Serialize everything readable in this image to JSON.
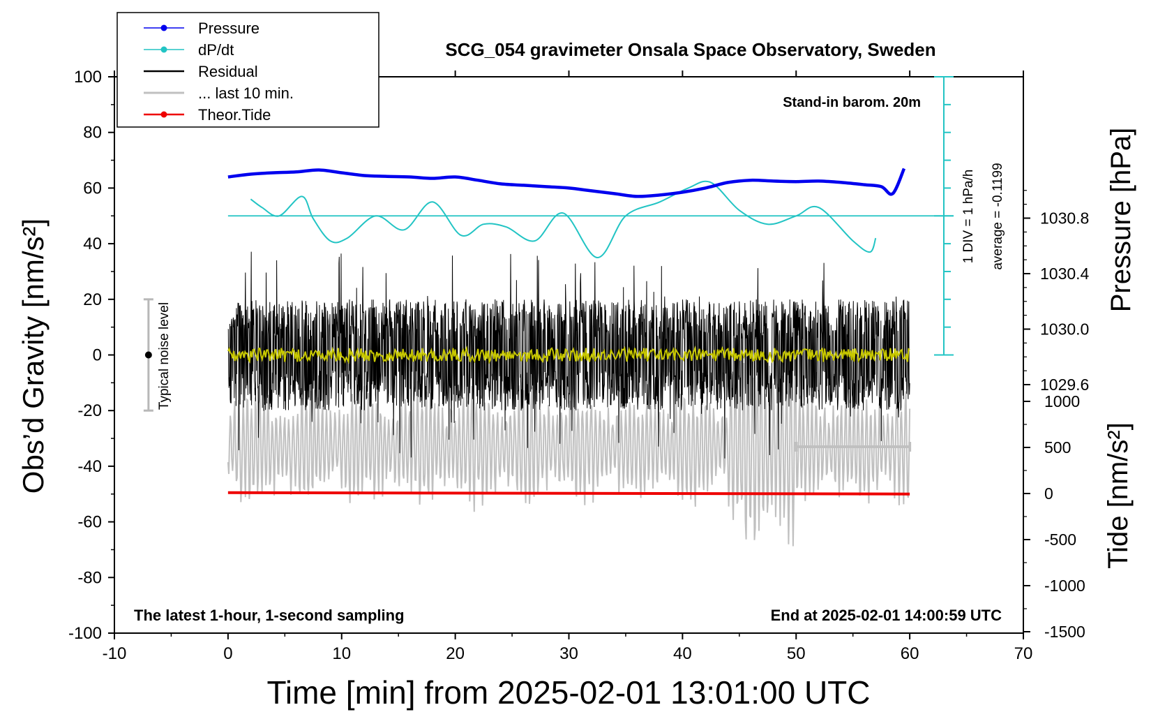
{
  "chart_data": {
    "type": "line",
    "title": "SCG_054 gravimeter Onsala Space Observatory, Sweden",
    "xlabel": "Time [min] from 2025-02-01 13:01:00 UTC",
    "ylabel_left": "Obs’d Gravity [nm/s²]",
    "ylabel_right_top": "Pressure [hPa]",
    "ylabel_right_bottom": "Tide [nm/s²]",
    "xlim": [
      -10,
      70
    ],
    "ylim_left": [
      -100,
      100
    ],
    "x_ticks": [
      "-10",
      "0",
      "10",
      "20",
      "30",
      "40",
      "50",
      "60",
      "70"
    ],
    "y_ticks_left": [
      "-100",
      "-80",
      "-60",
      "-40",
      "-20",
      "0",
      "20",
      "40",
      "60",
      "80",
      "100"
    ],
    "pressure_ticks": [
      {
        "label": "1029.6",
        "value": 1029.6
      },
      {
        "label": "1030.0",
        "value": 1030.0
      },
      {
        "label": "1030.4",
        "value": 1030.4
      },
      {
        "label": "1030.8",
        "value": 1030.8
      }
    ],
    "tide_ticks": [
      {
        "label": "-1500",
        "value": -1500
      },
      {
        "label": "-1000",
        "value": -1000
      },
      {
        "label": "-500",
        "value": -500
      },
      {
        "label": "0",
        "value": 0
      },
      {
        "label": "500",
        "value": 500
      },
      {
        "label": "1000",
        "value": 1000
      }
    ],
    "legend": [
      {
        "name": "Pressure",
        "color": "#0000ee",
        "marker": true
      },
      {
        "name": "dP/dt",
        "color": "#22c4c4",
        "marker": true
      },
      {
        "name": "Residual",
        "color": "#000000",
        "marker": false
      },
      {
        "name": "... last 10 min.",
        "color": "#c0c0c0",
        "marker": false
      },
      {
        "name": "Theor.Tide",
        "color": "#ee0000",
        "marker": true
      }
    ],
    "annotations": {
      "barometer": "Stand-in barom. 20m",
      "div_label": "1 DIV = 1 hPa/h",
      "average_label": "average = -0.1199",
      "noise_label": "Typical noise level",
      "bottom_left": "The latest 1-hour, 1-second sampling",
      "bottom_right": "End at 2025-02-01 14:00:59 UTC"
    },
    "pressure_series": {
      "x": [
        0,
        2,
        4,
        6,
        8,
        10,
        12,
        14,
        16,
        18,
        20,
        22,
        24,
        26,
        28,
        30,
        32,
        34,
        36,
        38,
        40,
        42,
        44,
        46,
        48,
        50,
        52,
        54,
        56,
        57.5,
        58.5,
        59.5
      ],
      "y": [
        64,
        65,
        65.5,
        65.8,
        66.5,
        65.5,
        64.5,
        64.2,
        64,
        63.5,
        64,
        62.8,
        61.5,
        61,
        60.5,
        60,
        59,
        58,
        57,
        57.5,
        58.5,
        60,
        62,
        62.8,
        62.5,
        62.3,
        62.5,
        62,
        61.2,
        60.5,
        58,
        67
      ]
    },
    "dpdt_series": {
      "baseline": 50,
      "x": [
        2,
        3,
        4.5,
        6.5,
        7.5,
        9,
        10.5,
        13,
        15.5,
        18,
        20.5,
        22.5,
        24.5,
        27,
        29.5,
        32.5,
        35,
        38,
        40.5,
        42.5,
        45,
        47.5,
        50,
        52,
        55,
        56.5,
        57
      ],
      "y": [
        56,
        53,
        50,
        57,
        49,
        41,
        42,
        50,
        45,
        55,
        43,
        47,
        46,
        41,
        51,
        35,
        50,
        55,
        60,
        62,
        52,
        47,
        50,
        53,
        41,
        37,
        42
      ]
    },
    "theor_tide": {
      "x": [
        0,
        60
      ],
      "y": [
        -49.5,
        -50
      ]
    },
    "residual": {
      "x_start": 0,
      "x_end": 60,
      "center": 0,
      "typical_amplitude": 16
    },
    "last_10min": {
      "x_start": 50,
      "x_end": 60,
      "y": -33
    },
    "noise_bar": {
      "x": -7,
      "low": -20,
      "high": 20
    },
    "dpdt_scale": {
      "x": 63,
      "bottom": 0,
      "top": 100
    }
  }
}
